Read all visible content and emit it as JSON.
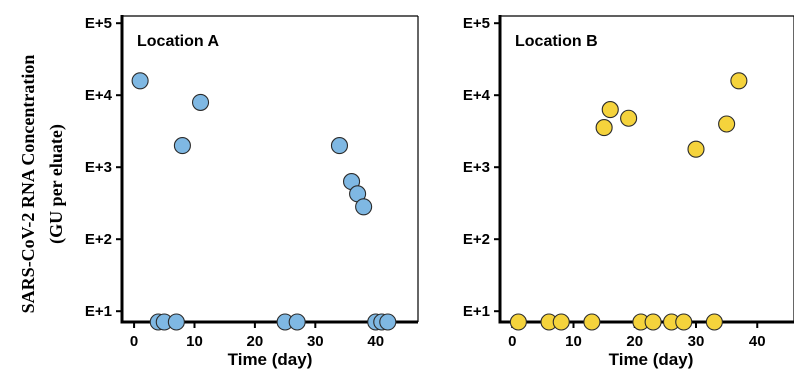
{
  "chart_data": {
    "type": "scatter",
    "ylabel_lines": [
      "SARS-CoV-2 RNA Concentration",
      "(GU per eluate)"
    ],
    "panels": [
      {
        "title": "Location A",
        "xlabel": "Time (day)",
        "xlim": [
          -2,
          47
        ],
        "ylim": [
          0.85,
          5.1
        ],
        "y_scale": "log10",
        "x_ticks": [
          0,
          10,
          20,
          30,
          40
        ],
        "x_tick_labels": [
          "0",
          "10",
          "20",
          "30",
          "40"
        ],
        "y_ticks": [
          1,
          2,
          3,
          4,
          5
        ],
        "y_tick_labels": [
          "E+1",
          "E+2",
          "E+3",
          "E+4",
          "E+5"
        ],
        "point_color": "#7fb8e3",
        "points": [
          {
            "x": 1,
            "y": 4.2
          },
          {
            "x": 8,
            "y": 3.3
          },
          {
            "x": 11,
            "y": 3.9
          },
          {
            "x": 34,
            "y": 3.3
          },
          {
            "x": 36,
            "y": 2.8
          },
          {
            "x": 37,
            "y": 2.63
          },
          {
            "x": 38,
            "y": 2.45
          },
          {
            "x": 4,
            "y": 0.85
          },
          {
            "x": 5,
            "y": 0.85
          },
          {
            "x": 7,
            "y": 0.85
          },
          {
            "x": 25,
            "y": 0.85
          },
          {
            "x": 27,
            "y": 0.85
          },
          {
            "x": 40,
            "y": 0.85
          },
          {
            "x": 41,
            "y": 0.85
          },
          {
            "x": 42,
            "y": 0.85
          }
        ]
      },
      {
        "title": "Location B",
        "xlabel": "Time (day)",
        "xlim": [
          -2,
          46
        ],
        "ylim": [
          0.85,
          5.1
        ],
        "y_scale": "log10",
        "x_ticks": [
          0,
          10,
          20,
          30,
          40
        ],
        "x_tick_labels": [
          "0",
          "10",
          "20",
          "30",
          "40"
        ],
        "y_ticks": [
          1,
          2,
          3,
          4,
          5
        ],
        "y_tick_labels": [
          "E+1",
          "E+2",
          "E+3",
          "E+4",
          "E+5"
        ],
        "point_color": "#f5d33c",
        "points": [
          {
            "x": 15,
            "y": 3.55
          },
          {
            "x": 16,
            "y": 3.8
          },
          {
            "x": 19,
            "y": 3.68
          },
          {
            "x": 30,
            "y": 3.25
          },
          {
            "x": 35,
            "y": 3.6
          },
          {
            "x": 37,
            "y": 4.2
          },
          {
            "x": 1,
            "y": 0.85
          },
          {
            "x": 6,
            "y": 0.85
          },
          {
            "x": 8,
            "y": 0.85
          },
          {
            "x": 13,
            "y": 0.85
          },
          {
            "x": 21,
            "y": 0.85
          },
          {
            "x": 23,
            "y": 0.85
          },
          {
            "x": 26,
            "y": 0.85
          },
          {
            "x": 28,
            "y": 0.85
          },
          {
            "x": 33,
            "y": 0.85
          }
        ]
      }
    ]
  }
}
